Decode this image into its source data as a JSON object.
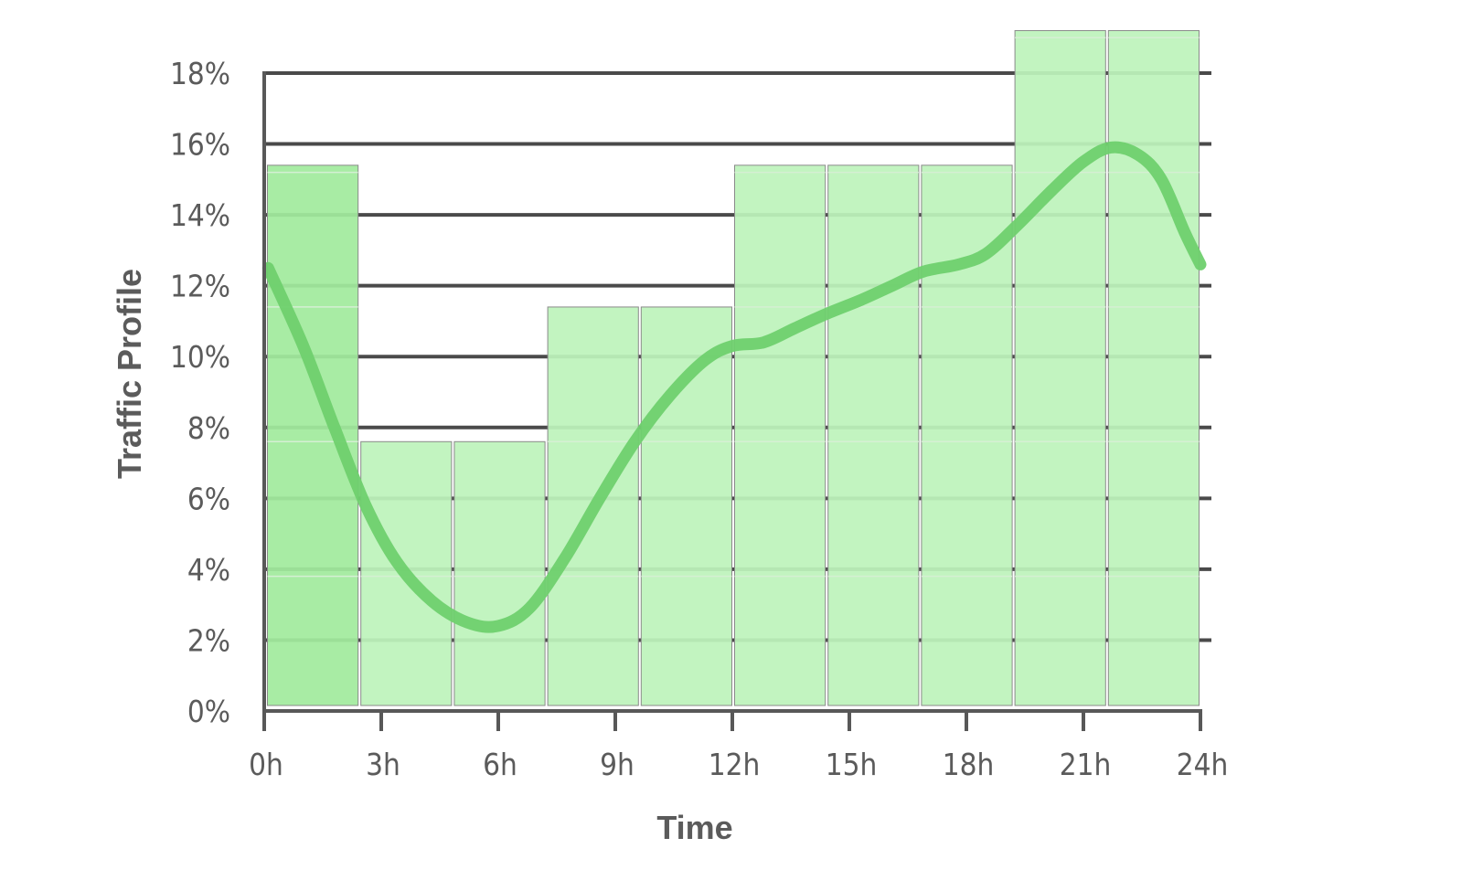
{
  "chart_data": {
    "type": "bar",
    "title": "",
    "xlabel": "Time",
    "ylabel": "Traffic Profile",
    "xlim": [
      0,
      24
    ],
    "ylim": [
      0,
      18
    ],
    "grid": true,
    "x_ticks": [
      0,
      3,
      6,
      9,
      12,
      15,
      18,
      21,
      24
    ],
    "x_tick_labels": [
      "0h",
      "3h",
      "6h",
      "9h",
      "12h",
      "15h",
      "18h",
      "21h",
      "24h"
    ],
    "y_ticks": [
      0,
      2,
      4,
      6,
      8,
      10,
      12,
      14,
      16,
      18
    ],
    "y_tick_labels": [
      "0%",
      "2%",
      "4%",
      "6%",
      "8%",
      "10%",
      "12%",
      "14%",
      "16%",
      "18%"
    ],
    "bar_values": [
      15.4,
      7.6,
      7.6,
      11.4,
      11.4,
      15.4,
      15.4,
      15.4,
      19.2,
      19.2
    ],
    "bar_segment_unit": 3.8,
    "highlight_bar_index": 0,
    "curve": {
      "x": [
        0.1,
        1.0,
        1.8,
        2.6,
        3.4,
        4.3,
        5.2,
        6.0,
        6.8,
        7.7,
        8.6,
        9.5,
        10.4,
        11.3,
        12.0,
        12.8,
        13.6,
        14.4,
        15.3,
        16.1,
        16.9,
        17.8,
        18.5,
        19.3,
        20.2,
        21.0,
        21.7,
        22.4,
        23.0,
        23.6,
        24.0
      ],
      "y": [
        12.5,
        10.3,
        8.0,
        5.8,
        4.2,
        3.1,
        2.5,
        2.4,
        2.9,
        4.3,
        6.0,
        7.6,
        8.9,
        9.9,
        10.3,
        10.4,
        10.8,
        11.2,
        11.6,
        12.0,
        12.4,
        12.6,
        12.9,
        13.7,
        14.7,
        15.5,
        15.9,
        15.7,
        15.0,
        13.5,
        12.6
      ]
    },
    "colors": {
      "bar_fill": "#bdf3bb",
      "bar_highlight_fill": "#a1eb9d",
      "bar_stroke": "#8a8a8a",
      "bar_divider": "#d5efd3",
      "curve": "#6fd06e",
      "grid": "#4a4a4a",
      "axis": "#585858",
      "text": "#5b5b5b"
    }
  }
}
